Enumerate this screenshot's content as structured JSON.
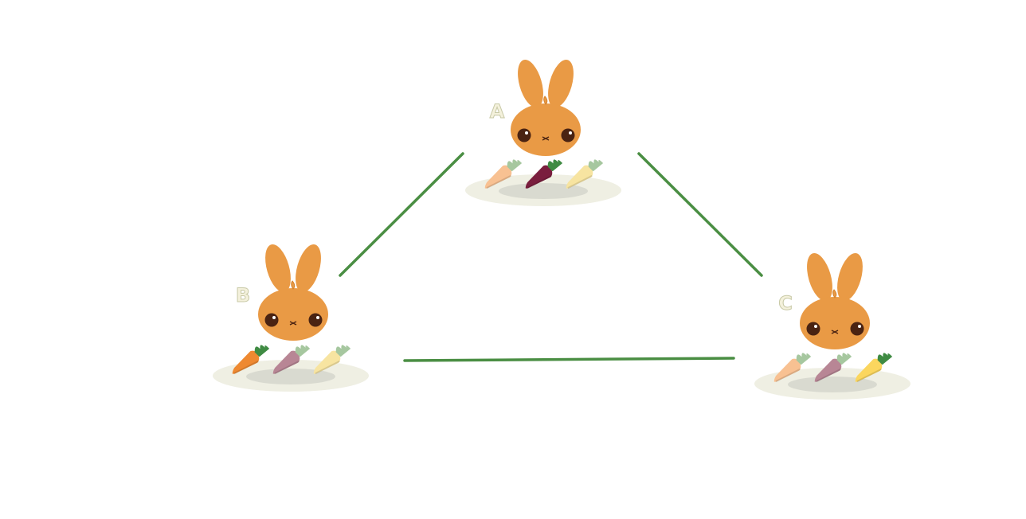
{
  "nodes": [
    {
      "id": "A",
      "label": "A",
      "carrots": [
        {
          "color": "#f8c192",
          "leaf": "#a6c79f"
        },
        {
          "color": "#7a1e3e",
          "leaf": "#3f8b43"
        },
        {
          "color": "#f7e4a1",
          "leaf": "#a6c79f"
        }
      ]
    },
    {
      "id": "B",
      "label": "B",
      "carrots": [
        {
          "color": "#ee8931",
          "leaf": "#3f8b43"
        },
        {
          "color": "#b88695",
          "leaf": "#a6c79f"
        },
        {
          "color": "#f7e4a1",
          "leaf": "#a6c79f"
        }
      ]
    },
    {
      "id": "C",
      "label": "C",
      "carrots": [
        {
          "color": "#f8c192",
          "leaf": "#a6c79f"
        },
        {
          "color": "#b88695",
          "leaf": "#a6c79f"
        },
        {
          "color": "#fbd65e",
          "leaf": "#3f8b43"
        }
      ]
    }
  ],
  "edges": [
    {
      "from": "A",
      "to": "B"
    },
    {
      "from": "A",
      "to": "C"
    },
    {
      "from": "B",
      "to": "C"
    }
  ],
  "colors": {
    "edge": "#4a8e43",
    "bunny": "#e99a45",
    "eye": "#4a2312",
    "label": "#f4f1dc",
    "label_outline": "#c8c9a6",
    "plate": "#efefe3",
    "plate_shadow": "#d9dad0"
  }
}
